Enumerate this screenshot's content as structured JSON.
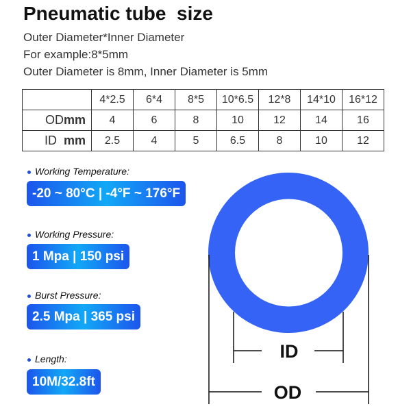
{
  "title": "Pneumatic tube  size",
  "lines": [
    "Outer Diameter*Inner Diameter",
    "For example:8*5mm",
    "Outer Diameter is 8mm, Inner Diameter is 5mm"
  ],
  "table": {
    "sizes": [
      "4*2.5",
      "6*4",
      "8*5",
      "10*6.5",
      "12*8",
      "14*10",
      "16*12"
    ],
    "od": {
      "label": "OD",
      "unit": "mm",
      "values": [
        "4",
        "6",
        "8",
        "10",
        "12",
        "14",
        "16"
      ]
    },
    "id": {
      "label": "ID",
      "unit": "mm",
      "values": [
        "2.5",
        "4",
        "5",
        "6.5",
        "8",
        "10",
        "12"
      ]
    }
  },
  "specs": [
    {
      "label": "Working Temperature:",
      "value": "-20 ~ 80°C | -4°F ~ 176°F"
    },
    {
      "label": "Working Pressure:",
      "value": "1 Mpa | 150 psi"
    },
    {
      "label": "Burst Pressure:",
      "value": "2.5 Mpa | 365 psi"
    },
    {
      "label": "Length:",
      "value": "10M/32.8ft"
    }
  ],
  "diagram": {
    "id_label": "ID",
    "od_label": "OD",
    "ring_color": "#3563f5"
  }
}
